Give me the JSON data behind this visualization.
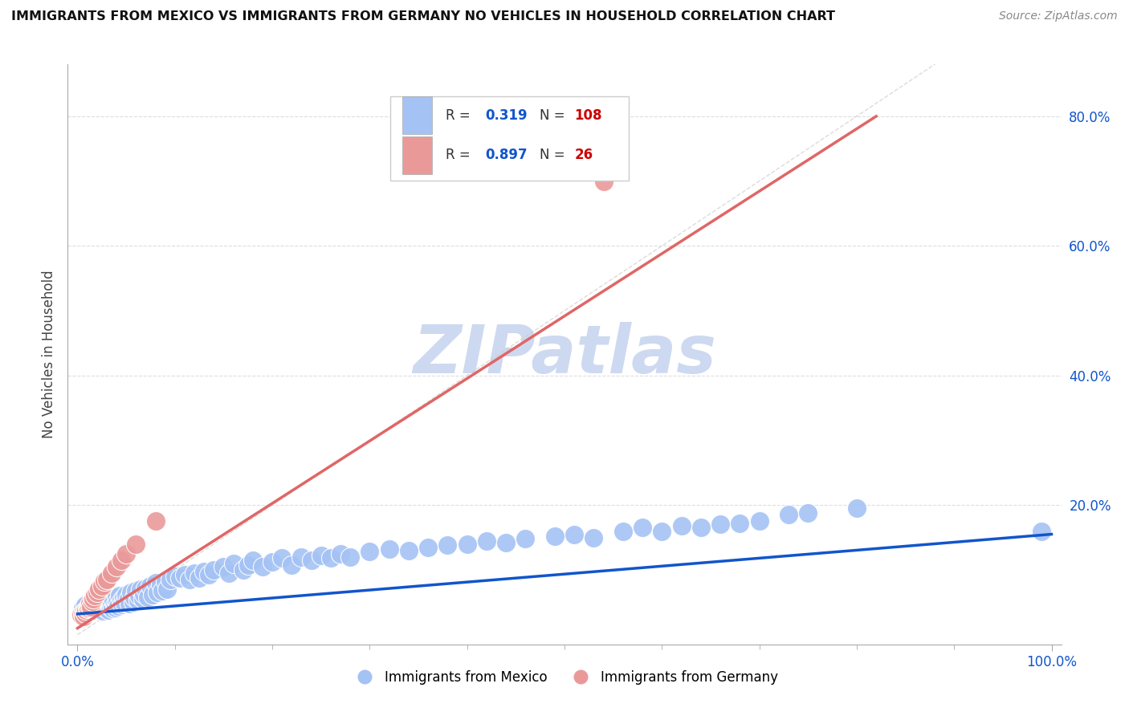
{
  "title": "IMMIGRANTS FROM MEXICO VS IMMIGRANTS FROM GERMANY NO VEHICLES IN HOUSEHOLD CORRELATION CHART",
  "source_text": "Source: ZipAtlas.com",
  "ylabel": "No Vehicles in Household",
  "mexico_R": 0.319,
  "mexico_N": 108,
  "germany_R": 0.897,
  "germany_N": 26,
  "xlim": [
    -0.01,
    1.01
  ],
  "ylim": [
    -0.015,
    0.88
  ],
  "blue_color": "#a4c2f4",
  "pink_color": "#ea9999",
  "blue_line_color": "#1155cc",
  "pink_line_color": "#e06666",
  "diag_line_color": "#cccccc",
  "grid_color": "#dddddd",
  "watermark_color": "#cdd9f0",
  "legend_R_color": "#1155cc",
  "legend_N_color": "#cc0000",
  "mexico_label": "Immigrants from Mexico",
  "germany_label": "Immigrants from Germany",
  "mexico_x": [
    0.005,
    0.007,
    0.008,
    0.01,
    0.012,
    0.013,
    0.015,
    0.016,
    0.018,
    0.02,
    0.021,
    0.022,
    0.023,
    0.024,
    0.025,
    0.026,
    0.028,
    0.029,
    0.03,
    0.031,
    0.032,
    0.033,
    0.034,
    0.035,
    0.036,
    0.037,
    0.038,
    0.039,
    0.04,
    0.041,
    0.042,
    0.043,
    0.045,
    0.046,
    0.047,
    0.048,
    0.05,
    0.052,
    0.053,
    0.055,
    0.057,
    0.058,
    0.06,
    0.062,
    0.063,
    0.065,
    0.067,
    0.068,
    0.07,
    0.072,
    0.075,
    0.077,
    0.08,
    0.082,
    0.085,
    0.087,
    0.09,
    0.092,
    0.095,
    0.1,
    0.105,
    0.11,
    0.115,
    0.12,
    0.125,
    0.13,
    0.135,
    0.14,
    0.15,
    0.155,
    0.16,
    0.17,
    0.175,
    0.18,
    0.19,
    0.2,
    0.21,
    0.22,
    0.23,
    0.24,
    0.25,
    0.26,
    0.27,
    0.28,
    0.3,
    0.32,
    0.34,
    0.36,
    0.38,
    0.4,
    0.42,
    0.44,
    0.46,
    0.49,
    0.51,
    0.53,
    0.56,
    0.58,
    0.6,
    0.62,
    0.64,
    0.66,
    0.68,
    0.7,
    0.73,
    0.75,
    0.8,
    0.99
  ],
  "mexico_y": [
    0.04,
    0.035,
    0.045,
    0.038,
    0.042,
    0.036,
    0.04,
    0.05,
    0.038,
    0.043,
    0.039,
    0.046,
    0.041,
    0.048,
    0.044,
    0.037,
    0.052,
    0.041,
    0.045,
    0.05,
    0.038,
    0.055,
    0.043,
    0.048,
    0.04,
    0.053,
    0.046,
    0.042,
    0.058,
    0.05,
    0.044,
    0.06,
    0.052,
    0.047,
    0.056,
    0.049,
    0.062,
    0.055,
    0.048,
    0.065,
    0.05,
    0.058,
    0.068,
    0.053,
    0.06,
    0.07,
    0.055,
    0.063,
    0.072,
    0.058,
    0.075,
    0.062,
    0.08,
    0.065,
    0.078,
    0.068,
    0.082,
    0.07,
    0.085,
    0.09,
    0.088,
    0.092,
    0.085,
    0.095,
    0.088,
    0.098,
    0.092,
    0.1,
    0.105,
    0.095,
    0.11,
    0.1,
    0.108,
    0.115,
    0.105,
    0.112,
    0.118,
    0.108,
    0.12,
    0.115,
    0.122,
    0.118,
    0.125,
    0.12,
    0.128,
    0.132,
    0.13,
    0.135,
    0.138,
    0.14,
    0.145,
    0.142,
    0.148,
    0.152,
    0.155,
    0.15,
    0.16,
    0.165,
    0.16,
    0.168,
    0.165,
    0.17,
    0.172,
    0.175,
    0.185,
    0.188,
    0.195,
    0.16
  ],
  "germany_x": [
    0.004,
    0.005,
    0.006,
    0.007,
    0.008,
    0.009,
    0.01,
    0.011,
    0.012,
    0.013,
    0.014,
    0.015,
    0.016,
    0.018,
    0.02,
    0.022,
    0.025,
    0.028,
    0.03,
    0.035,
    0.04,
    0.045,
    0.05,
    0.06,
    0.08,
    0.54
  ],
  "germany_y": [
    0.03,
    0.032,
    0.028,
    0.035,
    0.033,
    0.038,
    0.04,
    0.042,
    0.045,
    0.048,
    0.043,
    0.052,
    0.055,
    0.06,
    0.065,
    0.07,
    0.075,
    0.082,
    0.085,
    0.095,
    0.105,
    0.115,
    0.125,
    0.14,
    0.175,
    0.7
  ],
  "blue_trend_x0": 0.0,
  "blue_trend_y0": 0.032,
  "blue_trend_x1": 1.0,
  "blue_trend_y1": 0.155,
  "pink_trend_x0": 0.0,
  "pink_trend_y0": 0.01,
  "pink_trend_x1": 0.82,
  "pink_trend_y1": 0.8
}
